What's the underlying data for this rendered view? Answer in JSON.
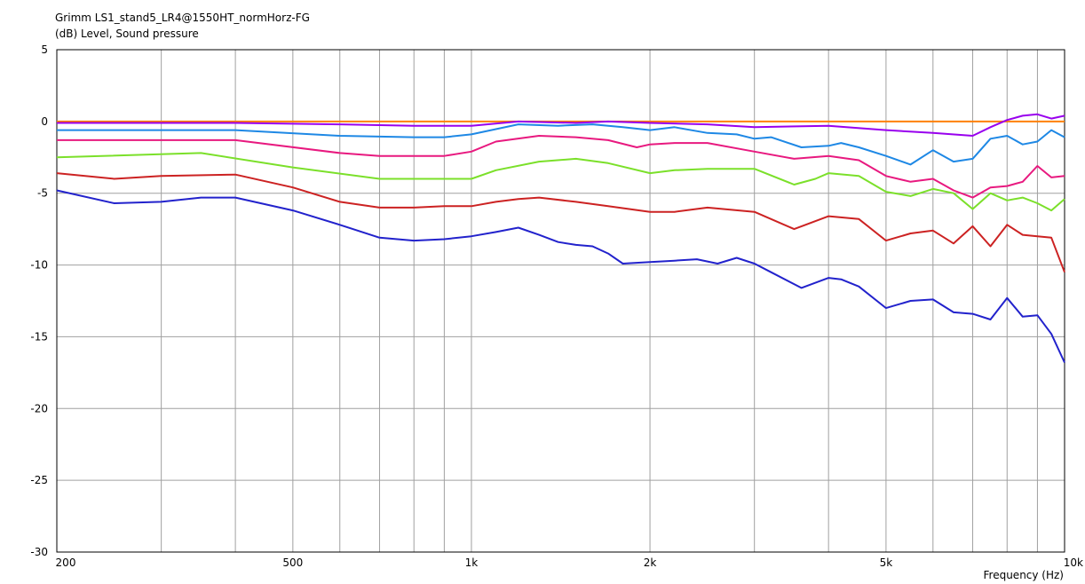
{
  "chart_data": {
    "type": "line",
    "title": "Grimm LS1_stand5_LR4@1550HT_normHorz-FG",
    "ylabel": "(dB)  Level, Sound pressure",
    "xlabel": "Frequency  (Hz)",
    "xscale": "log",
    "xlim": [
      200,
      10000
    ],
    "ylim": [
      -30,
      5
    ],
    "grid": true,
    "x_ticks": [
      {
        "value": 200,
        "label": "200"
      },
      {
        "value": 500,
        "label": "500"
      },
      {
        "value": 1000,
        "label": "1k"
      },
      {
        "value": 2000,
        "label": "2k"
      },
      {
        "value": 5000,
        "label": "5k"
      },
      {
        "value": 10000,
        "label": "10k"
      }
    ],
    "y_ticks": [
      {
        "value": 5,
        "label": "5"
      },
      {
        "value": 0,
        "label": "0"
      },
      {
        "value": -5,
        "label": "-5"
      },
      {
        "value": -10,
        "label": "-10"
      },
      {
        "value": -15,
        "label": "-15"
      },
      {
        "value": -20,
        "label": "-20"
      },
      {
        "value": -25,
        "label": "-25"
      },
      {
        "value": -30,
        "label": "-30"
      }
    ],
    "series": [
      {
        "color": "#ff8000",
        "x": [
          200,
          10000
        ],
        "y": [
          0,
          0
        ]
      },
      {
        "color": "#9900ee",
        "x": [
          200,
          400,
          600,
          800,
          1000,
          1200,
          1500,
          1700,
          2000,
          2500,
          3000,
          4000,
          5000,
          6000,
          7000,
          7500,
          8000,
          8500,
          9000,
          9500,
          10000
        ],
        "y": [
          -0.1,
          -0.1,
          -0.2,
          -0.3,
          -0.3,
          0.0,
          -0.1,
          0.0,
          -0.1,
          -0.2,
          -0.4,
          -0.3,
          -0.6,
          -0.8,
          -1.0,
          -0.4,
          0.1,
          0.4,
          0.5,
          0.2,
          0.4
        ]
      },
      {
        "color": "#1e88e5",
        "x": [
          200,
          400,
          600,
          800,
          900,
          1000,
          1200,
          1400,
          1600,
          1800,
          2000,
          2200,
          2500,
          2800,
          3000,
          3200,
          3600,
          4000,
          4200,
          4500,
          5000,
          5500,
          6000,
          6500,
          7000,
          7500,
          8000,
          8500,
          9000,
          9500,
          10000
        ],
        "y": [
          -0.6,
          -0.6,
          -1.0,
          -1.1,
          -1.1,
          -0.9,
          -0.2,
          -0.3,
          -0.2,
          -0.4,
          -0.6,
          -0.4,
          -0.8,
          -0.9,
          -1.2,
          -1.1,
          -1.8,
          -1.7,
          -1.5,
          -1.8,
          -2.4,
          -3.0,
          -2.0,
          -2.8,
          -2.6,
          -1.2,
          -1.0,
          -1.6,
          -1.4,
          -0.6,
          -1.1
        ]
      },
      {
        "color": "#e8197f",
        "x": [
          200,
          400,
          600,
          700,
          900,
          1000,
          1100,
          1300,
          1500,
          1700,
          1900,
          2000,
          2200,
          2500,
          3000,
          3500,
          4000,
          4500,
          5000,
          5500,
          6000,
          6500,
          7000,
          7500,
          8000,
          8500,
          9000,
          9500,
          10000
        ],
        "y": [
          -1.3,
          -1.3,
          -2.2,
          -2.4,
          -2.4,
          -2.1,
          -1.4,
          -1.0,
          -1.1,
          -1.3,
          -1.8,
          -1.6,
          -1.5,
          -1.5,
          -2.1,
          -2.6,
          -2.4,
          -2.7,
          -3.8,
          -4.2,
          -4.0,
          -4.8,
          -5.3,
          -4.6,
          -4.5,
          -4.2,
          -3.1,
          -3.9,
          -3.8
        ]
      },
      {
        "color": "#7be02a",
        "x": [
          200,
          350,
          500,
          700,
          1000,
          1100,
          1300,
          1500,
          1700,
          2000,
          2200,
          2500,
          3000,
          3500,
          3800,
          4000,
          4500,
          5000,
          5500,
          6000,
          6500,
          7000,
          7500,
          8000,
          8500,
          9000,
          9500,
          10000
        ],
        "y": [
          -2.5,
          -2.2,
          -3.2,
          -4.0,
          -4.0,
          -3.4,
          -2.8,
          -2.6,
          -2.9,
          -3.6,
          -3.4,
          -3.3,
          -3.3,
          -4.4,
          -4.0,
          -3.6,
          -3.8,
          -4.9,
          -5.2,
          -4.7,
          -5.0,
          -6.1,
          -5.0,
          -5.5,
          -5.3,
          -5.7,
          -6.2,
          -5.4
        ]
      },
      {
        "color": "#cc2222",
        "x": [
          200,
          250,
          300,
          400,
          500,
          600,
          700,
          800,
          900,
          1000,
          1100,
          1200,
          1300,
          1500,
          1700,
          2000,
          2200,
          2500,
          3000,
          3500,
          4000,
          4500,
          5000,
          5500,
          6000,
          6500,
          7000,
          7500,
          8000,
          8500,
          9000,
          9500,
          10000
        ],
        "y": [
          -3.6,
          -4.0,
          -3.8,
          -3.7,
          -4.6,
          -5.6,
          -6.0,
          -6.0,
          -5.9,
          -5.9,
          -5.6,
          -5.4,
          -5.3,
          -5.6,
          -5.9,
          -6.3,
          -6.3,
          -6.0,
          -6.3,
          -7.5,
          -6.6,
          -6.8,
          -8.3,
          -7.8,
          -7.6,
          -8.5,
          -7.3,
          -8.7,
          -7.2,
          -7.9,
          -8.0,
          -8.1,
          -10.5
        ]
      },
      {
        "color": "#2222cc",
        "x": [
          200,
          250,
          300,
          350,
          400,
          500,
          600,
          700,
          800,
          900,
          1000,
          1100,
          1200,
          1300,
          1400,
          1500,
          1600,
          1700,
          1800,
          2000,
          2200,
          2400,
          2600,
          2800,
          3000,
          3200,
          3600,
          4000,
          4200,
          4500,
          5000,
          5500,
          6000,
          6500,
          7000,
          7500,
          8000,
          8500,
          9000,
          9500,
          10000
        ],
        "y": [
          -4.8,
          -5.7,
          -5.6,
          -5.3,
          -5.3,
          -6.2,
          -7.2,
          -8.1,
          -8.3,
          -8.2,
          -8.0,
          -7.7,
          -7.4,
          -7.9,
          -8.4,
          -8.6,
          -8.7,
          -9.2,
          -9.9,
          -9.8,
          -9.7,
          -9.6,
          -9.9,
          -9.5,
          -9.9,
          -10.5,
          -11.6,
          -10.9,
          -11.0,
          -11.5,
          -13.0,
          -12.5,
          -12.4,
          -13.3,
          -13.4,
          -13.8,
          -12.3,
          -13.6,
          -13.5,
          -14.8,
          -16.8
        ]
      }
    ]
  }
}
